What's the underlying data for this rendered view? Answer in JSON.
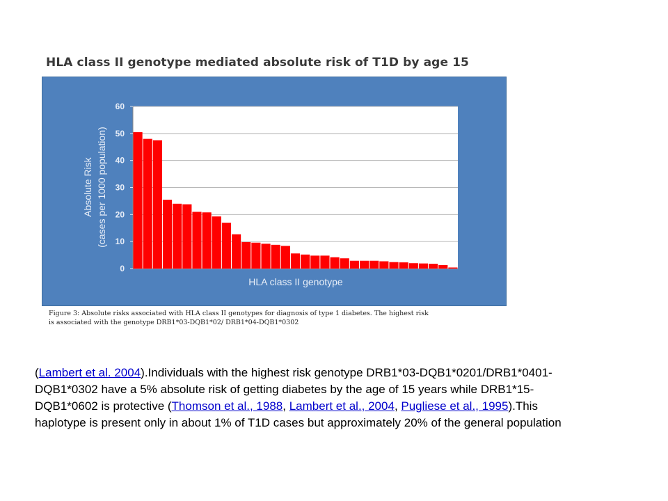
{
  "figure": {
    "title": "HLA class II genotype mediated absolute risk of T1D by age 15",
    "caption_line1": "Figure 3: Absolute risks associated with HLA class II genotypes for diagnosis of type 1 diabetes. The highest risk",
    "caption_line2": "is associated with the genotype DRB1*03-DQB1*02/ DRB1*04-DQB1*0302"
  },
  "chart_data": {
    "type": "bar",
    "title": "HLA class II genotype mediated absolute risk of T1D by age 15",
    "xlabel": "HLA class II genotype",
    "ylabel_line1": "Absolute Risk",
    "ylabel_line2": "(cases per 1000 population)",
    "ylim": [
      0,
      60
    ],
    "yticks": [
      0,
      10,
      20,
      30,
      40,
      50,
      60
    ],
    "grid": true,
    "values": [
      50.5,
      48,
      47.5,
      25.5,
      24,
      23.8,
      21,
      20.8,
      19.3,
      17,
      12.7,
      9.8,
      9.6,
      9.2,
      8.8,
      8.4,
      5.6,
      5.2,
      4.8,
      4.8,
      4.2,
      3.8,
      2.9,
      2.9,
      2.9,
      2.7,
      2.4,
      2.3,
      2.0,
      1.9,
      1.8,
      1.3,
      0.4
    ],
    "colors": {
      "panel": "#4f81bd",
      "plot": "#ffffff",
      "bar": "#ff0000",
      "text": "#e8eef8",
      "grid": "#b8b8b8"
    }
  },
  "text_block": {
    "lambert_2004": "Lambert et al. 2004",
    "s1": ").Individuals with the highest risk genotype DRB1*03-DQB1*0201/DRB1*0401-DQB1*0302 have a 5% absolute risk of getting diabetes by the age of 15 years while DRB1*15-DQB1*0602 is protective (",
    "thomson_1988": "Thomson et al., 1988",
    "lambert_2004b": "Lambert et al., 2004",
    "pugliese_1995": "Pugliese et al., 1995",
    "s2": ").This haplotype is present only in about 1% of T1D cases but approximately 20% of the general population"
  }
}
